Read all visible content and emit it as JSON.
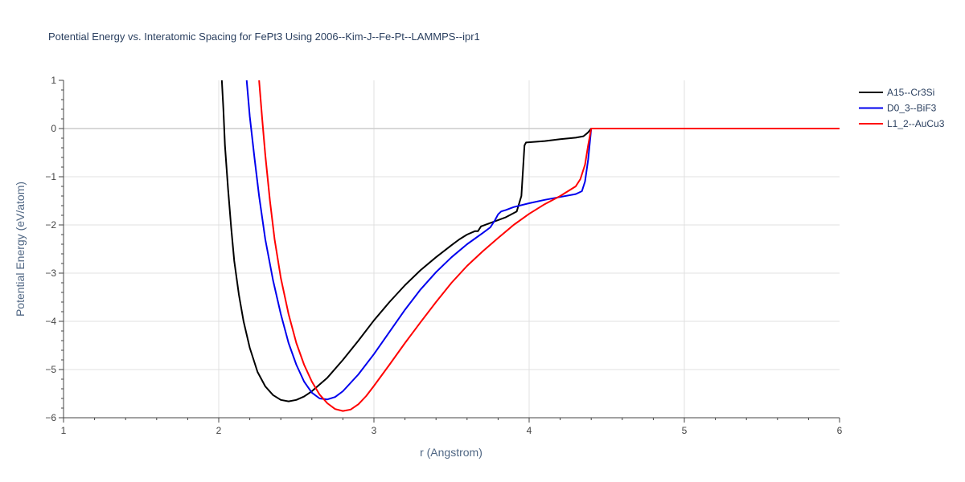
{
  "chart_data": {
    "type": "line",
    "title": "Potential Energy vs. Interatomic Spacing for FePt3 Using 2006--Kim-J--Fe-Pt--LAMMPS--ipr1",
    "xlabel": "r (Angstrom)",
    "ylabel": "Potential Energy (eV/atom)",
    "xlim": [
      1,
      6
    ],
    "ylim": [
      -6,
      1
    ],
    "x_ticks": [
      "1",
      "2",
      "3",
      "4",
      "5",
      "6"
    ],
    "y_ticks": [
      "1",
      "0",
      "−1",
      "−2",
      "−3",
      "−4",
      "−5",
      "−6"
    ],
    "grid": true,
    "legend_position": "top-right",
    "series": [
      {
        "name": "A15--Cr3Si",
        "color": "#000000",
        "points": [
          [
            2.02,
            1.0
          ],
          [
            2.03,
            0.4
          ],
          [
            2.04,
            -0.35
          ],
          [
            2.06,
            -1.25
          ],
          [
            2.08,
            -2.05
          ],
          [
            2.1,
            -2.75
          ],
          [
            2.13,
            -3.45
          ],
          [
            2.16,
            -4.0
          ],
          [
            2.2,
            -4.55
          ],
          [
            2.25,
            -5.05
          ],
          [
            2.3,
            -5.35
          ],
          [
            2.35,
            -5.53
          ],
          [
            2.4,
            -5.63
          ],
          [
            2.45,
            -5.66
          ],
          [
            2.5,
            -5.63
          ],
          [
            2.55,
            -5.56
          ],
          [
            2.6,
            -5.45
          ],
          [
            2.7,
            -5.17
          ],
          [
            2.8,
            -4.8
          ],
          [
            2.9,
            -4.4
          ],
          [
            3.0,
            -3.98
          ],
          [
            3.1,
            -3.6
          ],
          [
            3.2,
            -3.25
          ],
          [
            3.3,
            -2.94
          ],
          [
            3.4,
            -2.67
          ],
          [
            3.5,
            -2.42
          ],
          [
            3.55,
            -2.3
          ],
          [
            3.6,
            -2.2
          ],
          [
            3.65,
            -2.13
          ],
          [
            3.67,
            -2.13
          ],
          [
            3.69,
            -2.03
          ],
          [
            3.75,
            -1.96
          ],
          [
            3.85,
            -1.84
          ],
          [
            3.92,
            -1.72
          ],
          [
            3.95,
            -1.4
          ],
          [
            3.97,
            -0.35
          ],
          [
            3.98,
            -0.29
          ],
          [
            4.1,
            -0.26
          ],
          [
            4.2,
            -0.22
          ],
          [
            4.3,
            -0.19
          ],
          [
            4.35,
            -0.16
          ],
          [
            4.38,
            -0.08
          ],
          [
            4.4,
            0.0
          ],
          [
            6.0,
            0.0
          ]
        ]
      },
      {
        "name": "D0_3--BiF3",
        "color": "#0000ee",
        "points": [
          [
            2.18,
            1.0
          ],
          [
            2.2,
            0.25
          ],
          [
            2.23,
            -0.6
          ],
          [
            2.26,
            -1.4
          ],
          [
            2.3,
            -2.3
          ],
          [
            2.35,
            -3.15
          ],
          [
            2.4,
            -3.85
          ],
          [
            2.45,
            -4.45
          ],
          [
            2.5,
            -4.9
          ],
          [
            2.55,
            -5.25
          ],
          [
            2.6,
            -5.48
          ],
          [
            2.65,
            -5.6
          ],
          [
            2.7,
            -5.62
          ],
          [
            2.75,
            -5.57
          ],
          [
            2.8,
            -5.45
          ],
          [
            2.9,
            -5.1
          ],
          [
            3.0,
            -4.68
          ],
          [
            3.1,
            -4.22
          ],
          [
            3.2,
            -3.76
          ],
          [
            3.3,
            -3.34
          ],
          [
            3.4,
            -2.98
          ],
          [
            3.5,
            -2.67
          ],
          [
            3.6,
            -2.4
          ],
          [
            3.7,
            -2.17
          ],
          [
            3.75,
            -2.05
          ],
          [
            3.78,
            -1.9
          ],
          [
            3.8,
            -1.78
          ],
          [
            3.82,
            -1.72
          ],
          [
            3.85,
            -1.69
          ],
          [
            3.9,
            -1.63
          ],
          [
            4.0,
            -1.55
          ],
          [
            4.1,
            -1.48
          ],
          [
            4.2,
            -1.42
          ],
          [
            4.3,
            -1.36
          ],
          [
            4.34,
            -1.3
          ],
          [
            4.36,
            -1.1
          ],
          [
            4.38,
            -0.65
          ],
          [
            4.4,
            0.0
          ],
          [
            6.0,
            0.0
          ]
        ]
      },
      {
        "name": "L1_2--AuCu3",
        "color": "#ff0000",
        "points": [
          [
            2.26,
            1.0
          ],
          [
            2.28,
            0.2
          ],
          [
            2.3,
            -0.55
          ],
          [
            2.33,
            -1.5
          ],
          [
            2.36,
            -2.3
          ],
          [
            2.4,
            -3.1
          ],
          [
            2.45,
            -3.85
          ],
          [
            2.5,
            -4.45
          ],
          [
            2.55,
            -4.9
          ],
          [
            2.6,
            -5.25
          ],
          [
            2.65,
            -5.52
          ],
          [
            2.7,
            -5.7
          ],
          [
            2.75,
            -5.82
          ],
          [
            2.8,
            -5.86
          ],
          [
            2.85,
            -5.83
          ],
          [
            2.9,
            -5.72
          ],
          [
            2.95,
            -5.55
          ],
          [
            3.0,
            -5.34
          ],
          [
            3.1,
            -4.9
          ],
          [
            3.2,
            -4.45
          ],
          [
            3.3,
            -4.02
          ],
          [
            3.4,
            -3.6
          ],
          [
            3.5,
            -3.2
          ],
          [
            3.6,
            -2.85
          ],
          [
            3.7,
            -2.55
          ],
          [
            3.8,
            -2.27
          ],
          [
            3.9,
            -2.0
          ],
          [
            4.0,
            -1.77
          ],
          [
            4.1,
            -1.57
          ],
          [
            4.2,
            -1.4
          ],
          [
            4.3,
            -1.2
          ],
          [
            4.33,
            -1.05
          ],
          [
            4.36,
            -0.75
          ],
          [
            4.38,
            -0.35
          ],
          [
            4.4,
            0.0
          ],
          [
            6.0,
            0.0
          ]
        ]
      }
    ]
  }
}
